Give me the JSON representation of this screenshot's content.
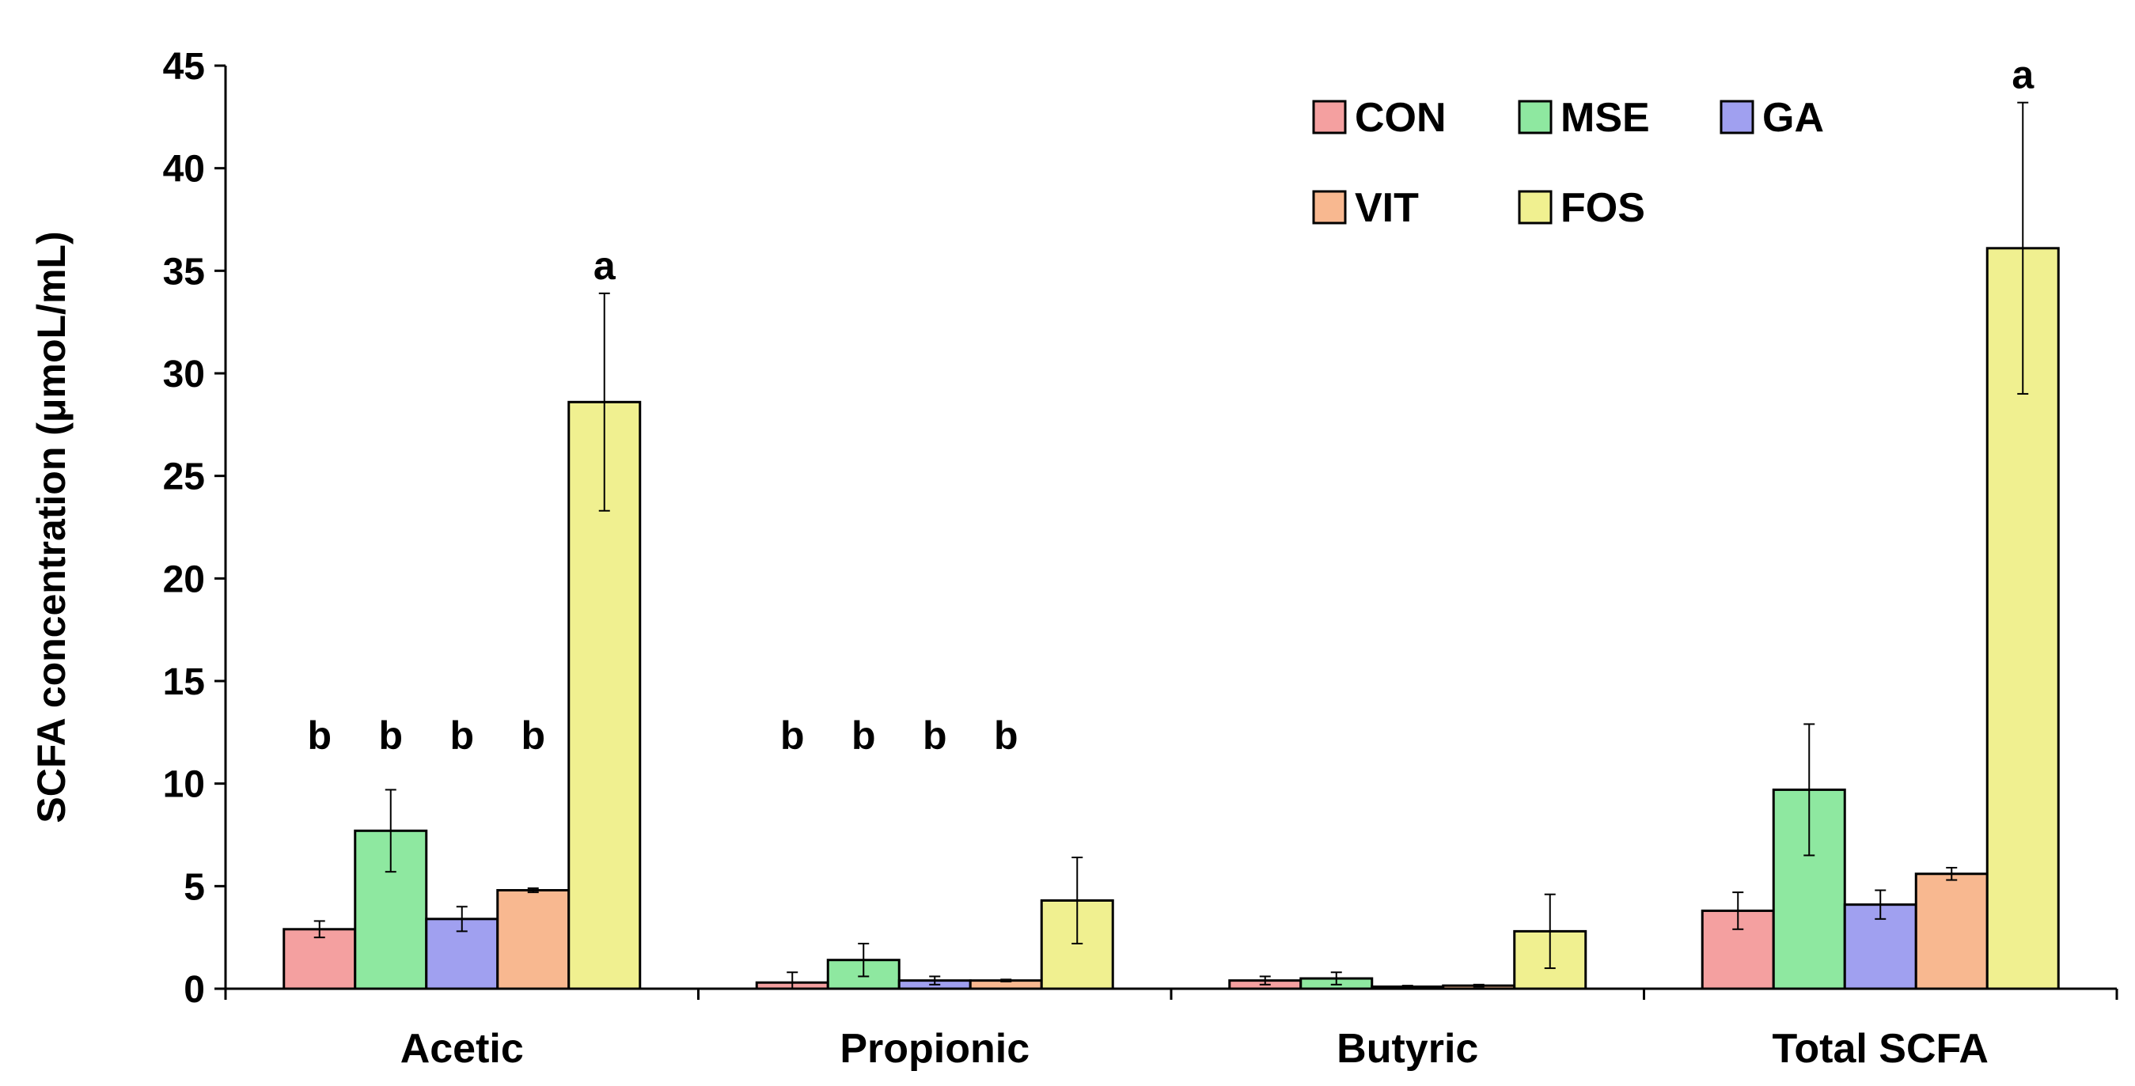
{
  "chart_data": {
    "type": "bar",
    "title": "",
    "xlabel": "",
    "ylabel": "SCFA concentration (μmoL/mL)",
    "ylim": [
      0,
      45
    ],
    "yticks": [
      0,
      5,
      10,
      15,
      20,
      25,
      30,
      35,
      40,
      45
    ],
    "grid": false,
    "legend_position": "top-right",
    "categories": [
      "Acetic",
      "Propionic",
      "Butyric",
      "Total SCFA"
    ],
    "series": [
      {
        "name": "CON",
        "color": "#f4a0a0",
        "values": [
          2.9,
          0.3,
          0.4,
          3.8
        ],
        "errors": [
          0.4,
          0.5,
          0.2,
          0.9
        ]
      },
      {
        "name": "MSE",
        "color": "#8ee8a0",
        "values": [
          7.7,
          1.4,
          0.5,
          9.7
        ],
        "errors": [
          2.0,
          0.8,
          0.3,
          3.2
        ]
      },
      {
        "name": "GA",
        "color": "#a0a0f0",
        "values": [
          3.4,
          0.4,
          0.1,
          4.1
        ],
        "errors": [
          0.6,
          0.2,
          0.05,
          0.7
        ]
      },
      {
        "name": "VIT",
        "color": "#f8b890",
        "values": [
          4.8,
          0.4,
          0.15,
          5.6
        ],
        "errors": [
          0.1,
          0.05,
          0.05,
          0.3
        ]
      },
      {
        "name": "FOS",
        "color": "#f0f090",
        "values": [
          28.6,
          4.3,
          2.8,
          36.1
        ],
        "errors": [
          5.3,
          2.1,
          1.8,
          7.1
        ]
      }
    ],
    "significance": [
      [
        "b",
        "b",
        "",
        ""
      ],
      [
        "b",
        "b",
        "",
        ""
      ],
      [
        "b",
        "b",
        "",
        ""
      ],
      [
        "b",
        "b",
        "",
        ""
      ],
      [
        "a",
        "",
        "",
        "a"
      ]
    ]
  }
}
